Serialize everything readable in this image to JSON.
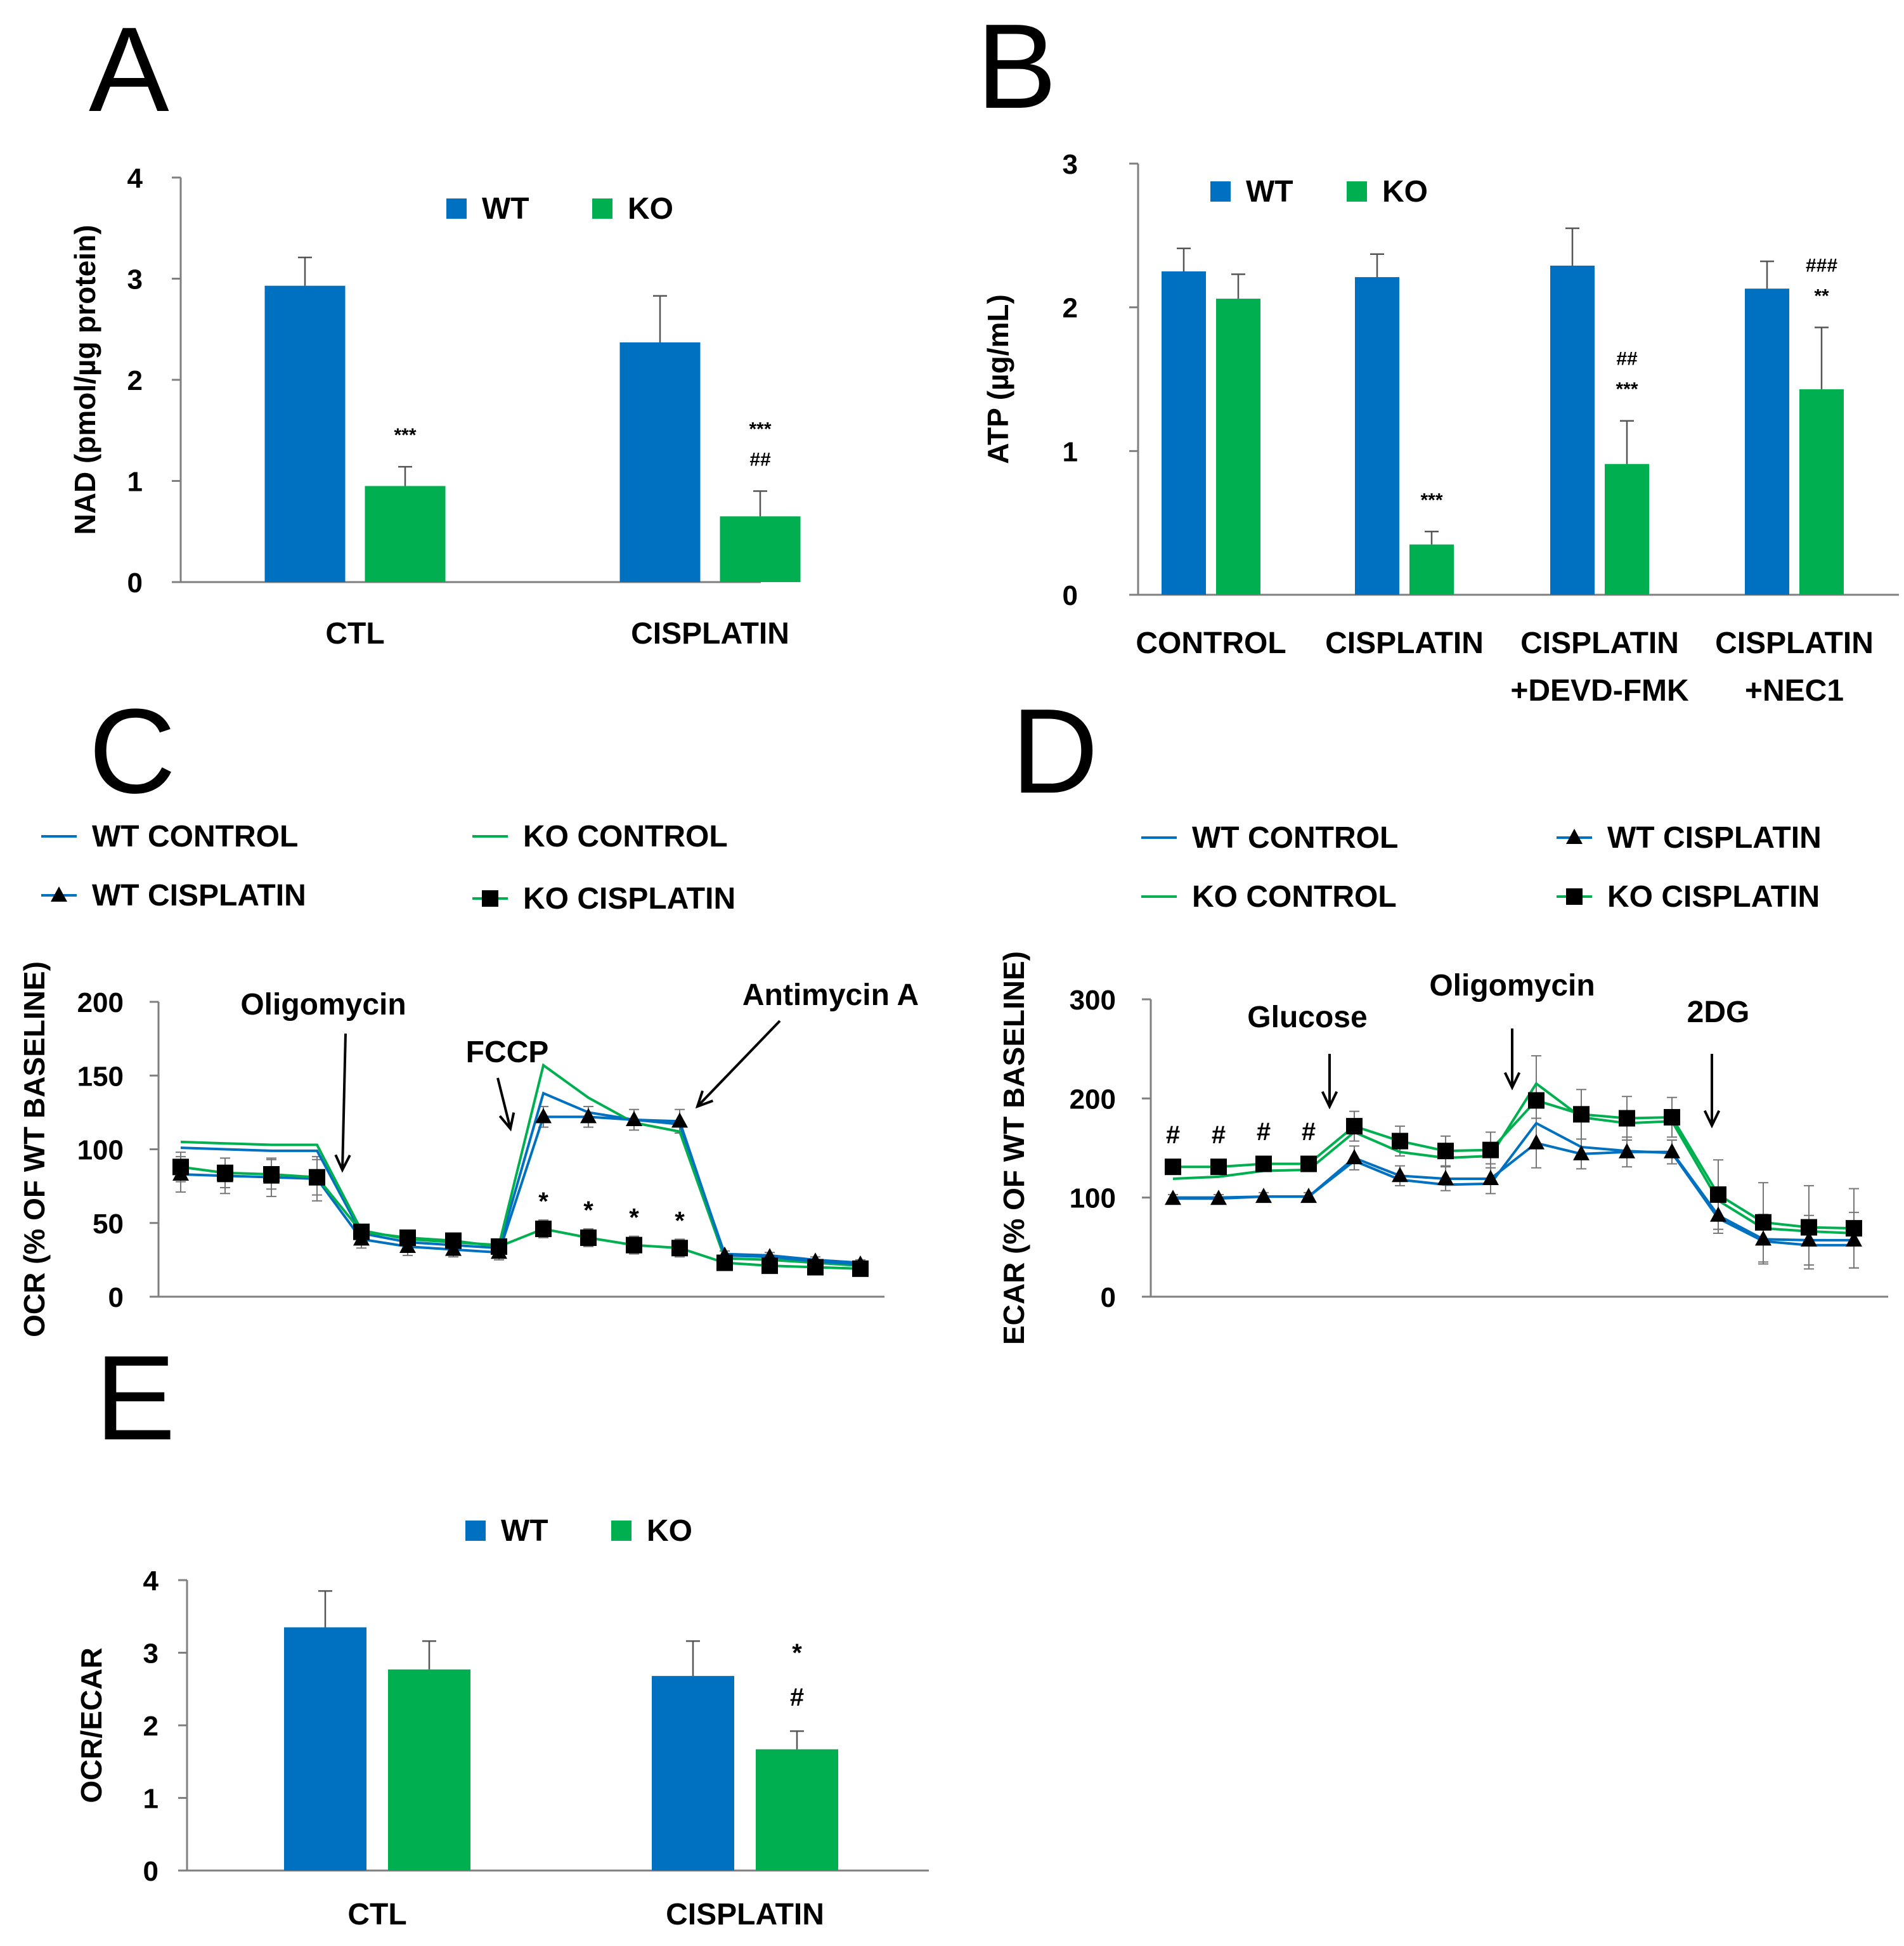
{
  "colors": {
    "wt": "#0070C0",
    "ko": "#00B050",
    "axis": "#7f7f7f",
    "text": "#000000"
  },
  "chart_data": [
    {
      "panel": "A",
      "type": "bar",
      "ylabel": "NAD (pmol/µg protein)",
      "yticks": [
        "0",
        "1",
        "2",
        "3",
        "4"
      ],
      "ylim": [
        0,
        4
      ],
      "categories": [
        "CTL",
        "CISPLATIN"
      ],
      "legend": [
        "WT",
        "KO"
      ],
      "series": [
        {
          "name": "WT",
          "values": [
            2.93,
            2.37
          ],
          "errors": [
            0.28,
            0.46
          ]
        },
        {
          "name": "KO",
          "values": [
            0.95,
            0.65
          ],
          "errors": [
            0.19,
            0.25
          ]
        }
      ],
      "significance": [
        {
          "category": 0,
          "series": 1,
          "lines": [
            "***"
          ]
        },
        {
          "category": 1,
          "series": 1,
          "lines": [
            "***",
            "##"
          ]
        }
      ]
    },
    {
      "panel": "B",
      "type": "bar",
      "ylabel": "ATP (µg/mL)",
      "yticks": [
        "0",
        "1",
        "2",
        "3"
      ],
      "ylim": [
        0,
        3
      ],
      "categories": [
        [
          "CONTROL"
        ],
        [
          "CISPLATIN"
        ],
        [
          "CISPLATIN",
          "+DEVD-FMK"
        ],
        [
          "CISPLATIN",
          "+NEC1"
        ]
      ],
      "legend": [
        "WT",
        "KO"
      ],
      "series": [
        {
          "name": "WT",
          "values": [
            2.25,
            2.21,
            2.29,
            2.13
          ],
          "errors": [
            0.16,
            0.16,
            0.26,
            0.19
          ]
        },
        {
          "name": "KO",
          "values": [
            2.06,
            0.35,
            0.91,
            1.43
          ],
          "errors": [
            0.17,
            0.09,
            0.3,
            0.43
          ]
        }
      ],
      "significance": [
        {
          "category": 1,
          "series": 1,
          "lines": [
            "***"
          ]
        },
        {
          "category": 2,
          "series": 1,
          "lines": [
            "##",
            "***"
          ]
        },
        {
          "category": 3,
          "series": 1,
          "lines": [
            "###",
            "**"
          ]
        }
      ]
    },
    {
      "panel": "C",
      "type": "line",
      "ylabel": "OCR (% OF WT BASELINE)",
      "yticks": [
        "0",
        "50",
        "100",
        "150",
        "200"
      ],
      "ylim": [
        0,
        200
      ],
      "x": [
        1,
        2,
        3,
        4,
        5,
        6,
        7,
        8,
        9,
        10,
        11,
        12,
        13,
        14,
        15,
        16
      ],
      "series": [
        {
          "name": "WT CONTROL",
          "color": "#0070C0",
          "marker": "none",
          "values": [
            101,
            100,
            99,
            99,
            43,
            37,
            35,
            33,
            138,
            125,
            120,
            117,
            29,
            28,
            25,
            23
          ]
        },
        {
          "name": "KO CONTROL",
          "color": "#00B050",
          "marker": "none",
          "values": [
            105,
            104,
            103,
            103,
            45,
            39,
            37,
            35,
            157,
            135,
            118,
            112,
            26,
            25,
            23,
            21
          ]
        },
        {
          "name": "WT CISPLATIN",
          "color": "#0070C0",
          "marker": "triangle",
          "values": [
            83,
            82,
            81,
            80,
            39,
            34,
            32,
            30,
            122,
            122,
            120,
            119,
            28,
            27,
            24,
            22
          ],
          "errors": [
            12,
            12,
            13,
            15,
            6,
            6,
            5,
            5,
            7,
            7,
            7,
            8,
            3,
            3,
            3,
            3
          ]
        },
        {
          "name": "KO CISPLATIN",
          "color": "#00B050",
          "marker": "square",
          "values": [
            88,
            84,
            83,
            81,
            44,
            40,
            38,
            34,
            46,
            40,
            35,
            33,
            23,
            21,
            20,
            19
          ],
          "errors": [
            10,
            10,
            10,
            12,
            5,
            5,
            5,
            4,
            6,
            6,
            6,
            6,
            3,
            3,
            3,
            3
          ]
        }
      ],
      "annotations": [
        {
          "text": "Oligomycin",
          "at": 4.6
        },
        {
          "text": "FCCP",
          "at": 8.5
        },
        {
          "text": "Antimycin A",
          "at": 12.5
        }
      ],
      "significance": [
        {
          "x": 9,
          "lines": [
            "*"
          ]
        },
        {
          "x": 10,
          "lines": [
            "*"
          ]
        },
        {
          "x": 11,
          "lines": [
            "*"
          ]
        },
        {
          "x": 12,
          "lines": [
            "*"
          ]
        }
      ]
    },
    {
      "panel": "D",
      "type": "line",
      "ylabel": "ECAR (% OF WT BASELINE)",
      "yticks": [
        "0",
        "100",
        "200",
        "300"
      ],
      "ylim": [
        0,
        300
      ],
      "x": [
        1,
        2,
        3,
        4,
        5,
        6,
        7,
        8,
        9,
        10,
        11,
        12,
        13,
        14,
        15,
        16
      ],
      "series": [
        {
          "name": "WT CONTROL",
          "color": "#0070C0",
          "marker": "none",
          "values": [
            100,
            100,
            101,
            101,
            137,
            118,
            113,
            114,
            175,
            151,
            147,
            145,
            79,
            56,
            52,
            52
          ]
        },
        {
          "name": "KO CONTROL",
          "color": "#00B050",
          "marker": "none",
          "values": [
            119,
            121,
            127,
            128,
            166,
            146,
            140,
            142,
            215,
            181,
            175,
            177,
            97,
            69,
            66,
            64
          ]
        },
        {
          "name": "WT CISPLATIN",
          "color": "#0070C0",
          "marker": "triangle",
          "values": [
            99,
            99,
            101,
            101,
            140,
            122,
            119,
            119,
            155,
            144,
            146,
            146,
            82,
            58,
            57,
            57
          ],
          "errors": [
            4,
            4,
            4,
            4,
            12,
            10,
            12,
            15,
            25,
            15,
            15,
            12,
            18,
            25,
            25,
            28
          ]
        },
        {
          "name": "KO CISPLATIN",
          "color": "#00B050",
          "marker": "square",
          "values": [
            131,
            131,
            134,
            134,
            172,
            157,
            147,
            148,
            198,
            184,
            180,
            181,
            103,
            75,
            70,
            69
          ],
          "errors": [
            6,
            6,
            6,
            6,
            15,
            15,
            15,
            18,
            45,
            25,
            22,
            20,
            35,
            40,
            42,
            40
          ]
        }
      ],
      "annotations": [
        {
          "text": "Glucose",
          "at": 4.4
        },
        {
          "text": "Oligomycin",
          "at": 8.4
        },
        {
          "text": "2DG",
          "at": 12.4
        }
      ],
      "significance": [
        {
          "x": 1,
          "lines": [
            "#"
          ]
        },
        {
          "x": 2,
          "lines": [
            "#"
          ]
        },
        {
          "x": 3,
          "lines": [
            "#"
          ]
        },
        {
          "x": 4,
          "lines": [
            "#"
          ]
        }
      ]
    },
    {
      "panel": "E",
      "type": "bar",
      "ylabel": "OCR/ECAR",
      "yticks": [
        "0",
        "1",
        "2",
        "3",
        "4"
      ],
      "ylim": [
        0,
        4
      ],
      "categories": [
        "CTL",
        "CISPLATIN"
      ],
      "legend": [
        "WT",
        "KO"
      ],
      "series": [
        {
          "name": "WT",
          "values": [
            3.35,
            2.68
          ],
          "errors": [
            0.5,
            0.48
          ]
        },
        {
          "name": "KO",
          "values": [
            2.77,
            1.67
          ],
          "errors": [
            0.39,
            0.25
          ]
        }
      ],
      "significance": [
        {
          "category": 1,
          "series": 1,
          "lines": [
            "*",
            "#"
          ]
        }
      ]
    }
  ]
}
